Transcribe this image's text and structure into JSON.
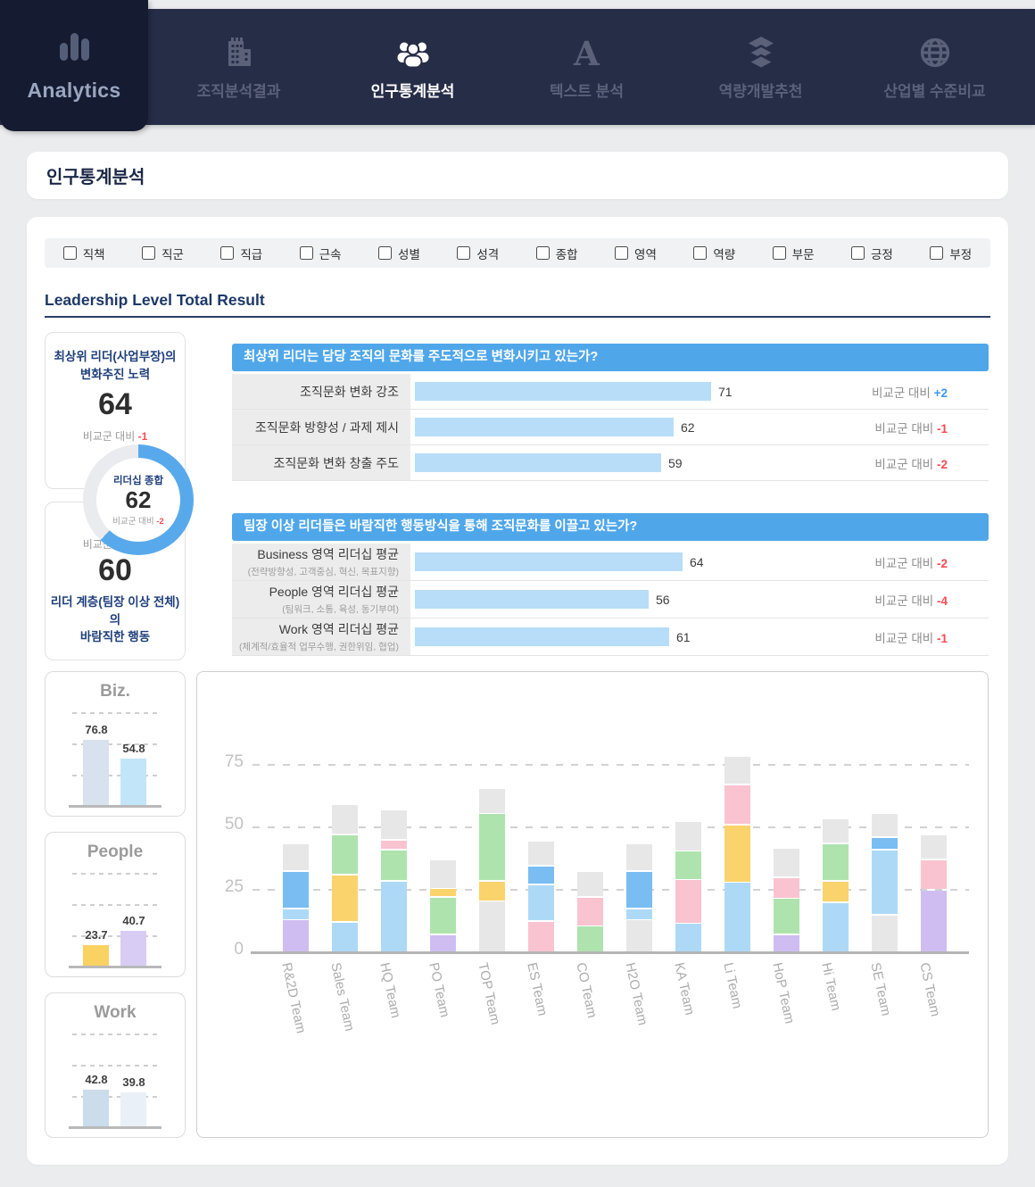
{
  "labels": {
    "compare": "비교군 대비"
  },
  "nav": {
    "brand": "Analytics",
    "tabs": [
      {
        "key": "org-analysis",
        "label": "조직분석결과",
        "icon": "building-icon",
        "active": false
      },
      {
        "key": "demographic-analysis",
        "label": "인구통계분석",
        "icon": "people-icon",
        "active": true
      },
      {
        "key": "text-analysis",
        "label": "텍스트 분석",
        "icon": "letter-a-icon",
        "active": false
      },
      {
        "key": "competency-recommendation",
        "label": "역량개발추천",
        "icon": "layers-icon",
        "active": false
      },
      {
        "key": "industry-comparison",
        "label": "산업별 수준비교",
        "icon": "globe-icon",
        "active": false
      }
    ]
  },
  "page_title": "인구통계분석",
  "filters": [
    {
      "key": "position",
      "label": "직책"
    },
    {
      "key": "job-group",
      "label": "직군"
    },
    {
      "key": "grade",
      "label": "직급"
    },
    {
      "key": "tenure",
      "label": "근속"
    },
    {
      "key": "gender",
      "label": "성별"
    },
    {
      "key": "personality",
      "label": "성격"
    },
    {
      "key": "overall",
      "label": "종합"
    },
    {
      "key": "domain",
      "label": "영역"
    },
    {
      "key": "competency",
      "label": "역량"
    },
    {
      "key": "division",
      "label": "부문"
    },
    {
      "key": "positive",
      "label": "긍정"
    },
    {
      "key": "negative",
      "label": "부정"
    }
  ],
  "section_title": "Leadership Level Total Result",
  "summary": {
    "top_card": {
      "title_line1": "최상위 리더(사업부장)의",
      "title_line2": "변화추진 노력",
      "value": "64",
      "compare_value": "-1"
    },
    "donut": {
      "label": "리더십 종합",
      "value": "62",
      "compare_value": "-2",
      "percent": 62,
      "color": "#58a9ec",
      "track_color": "#e9ebee"
    },
    "bottom_card": {
      "compare_value": "-2",
      "value": "60",
      "title_line1": "리더 계층(팀장 이상 전체)의",
      "title_line2": "바람직한 행동"
    }
  },
  "question_sections": [
    {
      "question": "최상위 리더는 담당 조직의 문화를 주도적으로 변화시키고 있는가?",
      "rows": [
        {
          "label": "조직문화 변화 강조",
          "sub": "",
          "value": 71,
          "compare": "+2"
        },
        {
          "label": "조직문화 방향성 / 과제 제시",
          "sub": "",
          "value": 62,
          "compare": "-1"
        },
        {
          "label": "조직문화 변화 창출 주도",
          "sub": "",
          "value": 59,
          "compare": "-2"
        }
      ]
    },
    {
      "question": "팀장 이상 리더들은 바람직한 행동방식을 통해 조직문화를 이끌고 있는가?",
      "rows": [
        {
          "label": "Business 영역 리더십 평균",
          "sub": "(전략방향성, 고객중심, 혁신, 목표지향)",
          "value": 64,
          "compare": "-2"
        },
        {
          "label": "People 영역 리더십 평균",
          "sub": "(팀워크, 소통, 육성, 동기부여)",
          "value": 56,
          "compare": "-4"
        },
        {
          "label": "Work 영역 리더십 평균",
          "sub": "(체계적/효율적 업무수행, 권한위임, 협업)",
          "value": 61,
          "compare": "-1"
        }
      ]
    }
  ],
  "chart_data": [
    {
      "type": "donut",
      "title": "리더십 종합",
      "value": 62,
      "max": 100,
      "compare": -2
    },
    {
      "type": "bar",
      "title": "Biz.",
      "values": [
        76.8,
        54.8
      ],
      "colors": [
        "#d7e2ee",
        "#c3e5f9"
      ],
      "ylim": [
        0,
        110
      ],
      "grid": "dashed"
    },
    {
      "type": "bar",
      "title": "People",
      "values": [
        23.7,
        40.7
      ],
      "colors": [
        "#f9d262",
        "#d8ccf4"
      ],
      "ylim": [
        0,
        110
      ],
      "grid": "dashed"
    },
    {
      "type": "bar",
      "title": "Work",
      "values": [
        42.8,
        39.8
      ],
      "colors": [
        "#cbdcea",
        "#e9f0f7"
      ],
      "ylim": [
        0,
        110
      ],
      "grid": "dashed"
    },
    {
      "type": "stacked-bar",
      "title": "",
      "yticks": [
        0,
        25,
        50,
        75
      ],
      "ylim": [
        0,
        85
      ],
      "palette": {
        "grey": "#e7e7e7",
        "lightblue": "#add9f7",
        "blue": "#79bdf3",
        "yellow": "#fad36c",
        "green": "#aee3ae",
        "pink": "#f9c3d0",
        "purple": "#cfbdf2"
      },
      "categories": [
        "R&2D Team",
        "Sales Team",
        "HQ Team",
        "PO Team",
        "TOP Team",
        "ES Team",
        "CO Team",
        "H2O Team",
        "KA Team",
        "Li Team",
        "HoP Team",
        "Hi Team",
        "SE Team",
        "CS Team"
      ],
      "bars": [
        {
          "team": "R&2D Team",
          "segments": [
            [
              "purple",
              13
            ],
            [
              "lightblue",
              4.5
            ],
            [
              "blue",
              15
            ],
            [
              "grey",
              11
            ]
          ]
        },
        {
          "team": "Sales Team",
          "segments": [
            [
              "lightblue",
              12
            ],
            [
              "yellow",
              19
            ],
            [
              "green",
              16
            ],
            [
              "grey",
              12
            ]
          ]
        },
        {
          "team": "HQ Team",
          "segments": [
            [
              "lightblue",
              28.5
            ],
            [
              "green",
              12.5
            ],
            [
              "pink",
              4
            ],
            [
              "grey",
              12
            ]
          ]
        },
        {
          "team": "PO Team",
          "segments": [
            [
              "purple",
              7
            ],
            [
              "green",
              15
            ],
            [
              "yellow",
              3.5
            ],
            [
              "grey",
              11.5
            ]
          ]
        },
        {
          "team": "TOP Team",
          "segments": [
            [
              "grey",
              20.5
            ],
            [
              "yellow",
              8
            ],
            [
              "green",
              27
            ],
            [
              "grey",
              10
            ]
          ]
        },
        {
          "team": "ES Team",
          "segments": [
            [
              "pink",
              12.5
            ],
            [
              "lightblue",
              14.5
            ],
            [
              "blue",
              7.5
            ],
            [
              "grey",
              10
            ]
          ]
        },
        {
          "team": "CO Team",
          "segments": [
            [
              "green",
              10.5
            ],
            [
              "pink",
              11.5
            ],
            [
              "grey",
              10.5
            ]
          ]
        },
        {
          "team": "H2O Team",
          "segments": [
            [
              "grey",
              13
            ],
            [
              "lightblue",
              4.5
            ],
            [
              "blue",
              15
            ],
            [
              "grey",
              11
            ]
          ]
        },
        {
          "team": "KA Team",
          "segments": [
            [
              "lightblue",
              11.5
            ],
            [
              "pink",
              17.5
            ],
            [
              "green",
              11.5
            ],
            [
              "grey",
              12
            ]
          ]
        },
        {
          "team": "Li Team",
          "segments": [
            [
              "lightblue",
              28
            ],
            [
              "yellow",
              23
            ],
            [
              "pink",
              16
            ],
            [
              "grey",
              11.5
            ]
          ]
        },
        {
          "team": "HoP Team",
          "segments": [
            [
              "purple",
              7
            ],
            [
              "green",
              14.5
            ],
            [
              "pink",
              8.5
            ],
            [
              "grey",
              11.5
            ]
          ]
        },
        {
          "team": "Hi Team",
          "segments": [
            [
              "lightblue",
              20
            ],
            [
              "yellow",
              8.5
            ],
            [
              "green",
              15
            ],
            [
              "grey",
              10
            ]
          ]
        },
        {
          "team": "SE Team",
          "segments": [
            [
              "grey",
              15
            ],
            [
              "lightblue",
              26
            ],
            [
              "blue",
              5
            ],
            [
              "grey",
              9.5
            ]
          ]
        },
        {
          "team": "CS Team",
          "segments": [
            [
              "purple",
              25
            ],
            [
              "pink",
              12
            ],
            [
              "grey",
              10
            ]
          ]
        }
      ]
    }
  ]
}
